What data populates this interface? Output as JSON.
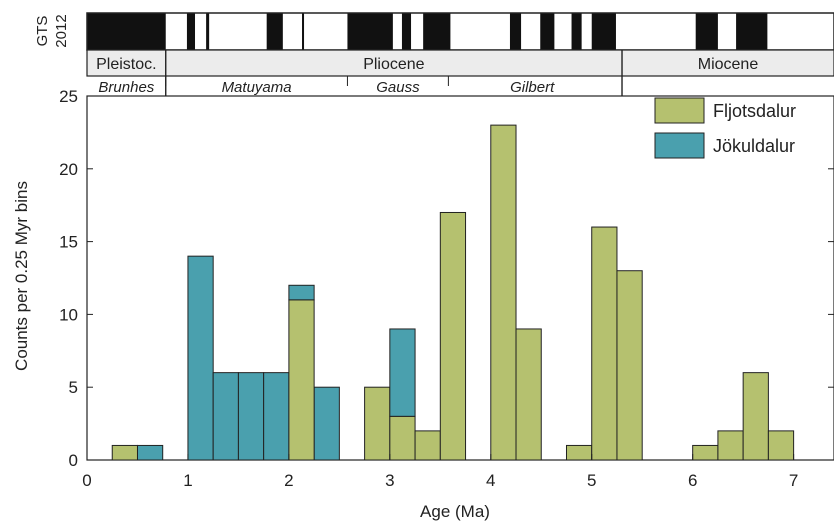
{
  "chart_data": {
    "type": "bar",
    "bin_width": 0.25,
    "xlabel": "Age (Ma)",
    "ylabel": "Counts per 0.25 Myr bins",
    "xlim": [
      0,
      7.4
    ],
    "ylim": [
      0,
      25
    ],
    "x_ticks": [
      0,
      1,
      2,
      3,
      4,
      5,
      6,
      7
    ],
    "y_ticks": [
      0,
      5,
      10,
      15,
      20,
      25
    ],
    "legend_position": "top-right",
    "series": [
      {
        "name": "Jökuldalur",
        "color": "#4aa0ae",
        "bins": [
          {
            "x0": 0.5,
            "value": 1
          },
          {
            "x0": 1.0,
            "value": 14
          },
          {
            "x0": 1.25,
            "value": 6
          },
          {
            "x0": 1.5,
            "value": 6
          },
          {
            "x0": 1.75,
            "value": 6
          },
          {
            "x0": 2.0,
            "value": 1
          },
          {
            "x0": 2.25,
            "value": 5
          },
          {
            "x0": 3.0,
            "value": 6
          }
        ]
      },
      {
        "name": "Fljotsdalur",
        "color": "#b5c16f",
        "bins": [
          {
            "x0": 0.25,
            "value": 1
          },
          {
            "x0": 2.0,
            "value": 11
          },
          {
            "x0": 2.75,
            "value": 5
          },
          {
            "x0": 3.0,
            "value": 3
          },
          {
            "x0": 3.25,
            "value": 2
          },
          {
            "x0": 3.5,
            "value": 17
          },
          {
            "x0": 4.0,
            "value": 23
          },
          {
            "x0": 4.25,
            "value": 9
          },
          {
            "x0": 4.75,
            "value": 1
          },
          {
            "x0": 5.0,
            "value": 16
          },
          {
            "x0": 5.25,
            "value": 13
          },
          {
            "x0": 6.0,
            "value": 1
          },
          {
            "x0": 6.25,
            "value": 2
          },
          {
            "x0": 6.5,
            "value": 6
          },
          {
            "x0": 6.75,
            "value": 2
          }
        ]
      }
    ],
    "timescale": {
      "label_line1": "GTS",
      "label_line2": "2012",
      "normal_polarity_intervals": [
        [
          0.0,
          0.78
        ],
        [
          0.99,
          1.07
        ],
        [
          1.18,
          1.21
        ],
        [
          1.78,
          1.94
        ],
        [
          2.13,
          2.15
        ],
        [
          2.58,
          3.03
        ],
        [
          3.12,
          3.21
        ],
        [
          3.33,
          3.6
        ],
        [
          4.19,
          4.3
        ],
        [
          4.49,
          4.63
        ],
        [
          4.8,
          4.9
        ],
        [
          5.0,
          5.24
        ],
        [
          6.03,
          6.25
        ],
        [
          6.43,
          6.74
        ]
      ],
      "epochs": [
        {
          "name": "Pleistoc.",
          "start": 0,
          "end": 0.78
        },
        {
          "name": "Pliocene",
          "start": 0.78,
          "end": 5.3
        },
        {
          "name": "Miocene",
          "start": 5.3,
          "end": 7.4
        }
      ],
      "chrons": [
        {
          "name": "Brunhes",
          "start": 0,
          "end": 0.78
        },
        {
          "name": "Matuyama",
          "start": 0.78,
          "end": 2.58
        },
        {
          "name": "Gauss",
          "start": 2.58,
          "end": 3.58
        },
        {
          "name": "Gilbert",
          "start": 3.58,
          "end": 5.24
        }
      ]
    }
  }
}
